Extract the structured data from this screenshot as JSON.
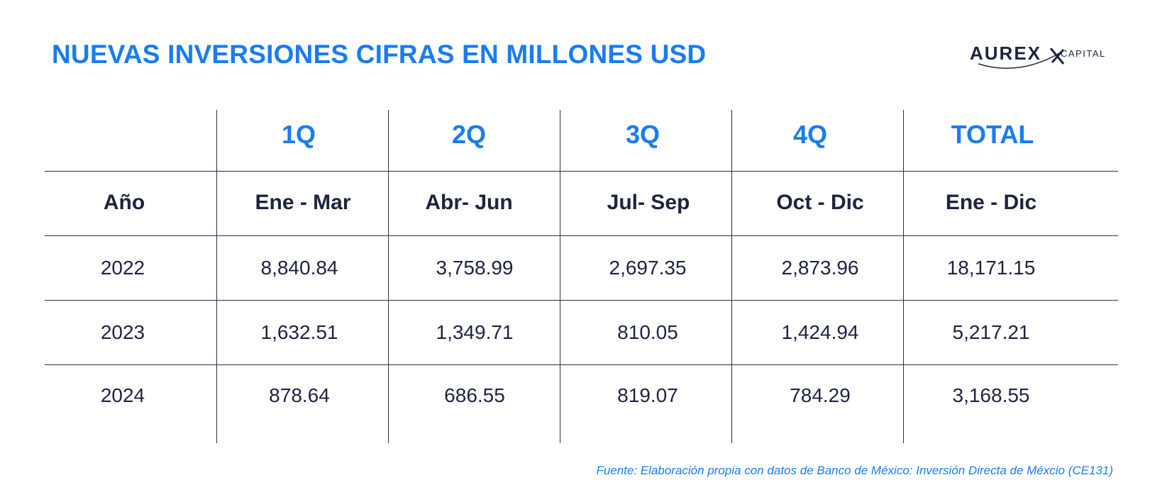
{
  "title": "NUEVAS INVERSIONES CIFRAS EN MILLONES USD",
  "logo": {
    "brand": "AUREX",
    "sub": "CAPITAL"
  },
  "colors": {
    "accent": "#1a7cf0",
    "text": "#1d2340",
    "rule": "#2b2f4a"
  },
  "table": {
    "quarter_headers": [
      "",
      "1Q",
      "2Q",
      "3Q",
      "4Q",
      "TOTAL"
    ],
    "period_headers": [
      "Año",
      "Ene - Mar",
      "Abr- Jun",
      "Jul- Sep",
      "Oct - Dic",
      "Ene - Dic"
    ],
    "rows": [
      [
        "2022",
        "8,840.84",
        "3,758.99",
        "2,697.35",
        "2,873.96",
        "18,171.15"
      ],
      [
        "2023",
        "1,632.51",
        "1,349.71",
        "810.05",
        "1,424.94",
        "5,217.21"
      ],
      [
        "2024",
        "878.64",
        "686.55",
        "819.07",
        "784.29",
        "3,168.55"
      ]
    ]
  },
  "source": "Fuente: Elaboración propia con datos de Banco de México: Inversión Directa de Méxcio (CE131)"
}
